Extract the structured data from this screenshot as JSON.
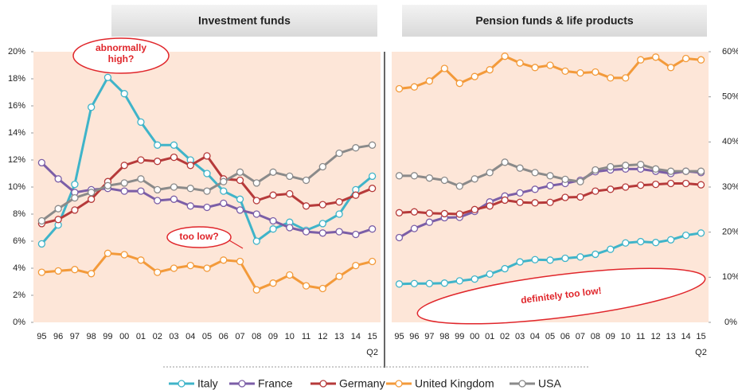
{
  "chart_data": [
    {
      "type": "line",
      "title": "Investment funds",
      "categories": [
        "95",
        "96",
        "97",
        "98",
        "99",
        "00",
        "01",
        "02",
        "03",
        "04",
        "05",
        "06",
        "07",
        "08",
        "09",
        "10",
        "11",
        "12",
        "13",
        "14",
        "15"
      ],
      "category_note": "Q2",
      "ylim": [
        0,
        20
      ],
      "yticks": [
        {
          "value": 0,
          "label": "0%"
        },
        {
          "value": 2,
          "label": "2%"
        },
        {
          "value": 4,
          "label": "4%"
        },
        {
          "value": 6,
          "label": "6%"
        },
        {
          "value": 8,
          "label": "8%"
        },
        {
          "value": 10,
          "label": "10%"
        },
        {
          "value": 12,
          "label": "12%"
        },
        {
          "value": 14,
          "label": "14%"
        },
        {
          "value": 16,
          "label": "16%"
        },
        {
          "value": 18,
          "label": "18%"
        },
        {
          "value": 20,
          "label": "20%"
        }
      ],
      "axis_side": "left",
      "annotations": [
        "abnormally high?",
        "too low?"
      ],
      "series": [
        {
          "name": "Italy",
          "color": "#3fb4c9",
          "values": [
            5.8,
            7.2,
            10.2,
            15.9,
            18.1,
            16.9,
            14.8,
            13.1,
            13.1,
            12.0,
            11.0,
            9.7,
            9.1,
            6.0,
            6.9,
            7.4,
            6.8,
            7.3,
            8.0,
            9.8,
            10.8
          ]
        },
        {
          "name": "France",
          "color": "#7b5ea7",
          "values": [
            11.8,
            10.6,
            9.6,
            9.8,
            9.9,
            9.7,
            9.7,
            9.0,
            9.1,
            8.6,
            8.5,
            8.8,
            8.3,
            8.0,
            7.5,
            7.0,
            6.7,
            6.6,
            6.7,
            6.5,
            6.9
          ]
        },
        {
          "name": "Germany",
          "color": "#b63a3a",
          "values": [
            7.3,
            7.6,
            8.3,
            9.1,
            10.4,
            11.6,
            12.0,
            11.9,
            12.2,
            11.6,
            12.3,
            10.6,
            10.5,
            9.0,
            9.4,
            9.5,
            8.6,
            8.7,
            8.9,
            9.4,
            9.9
          ]
        },
        {
          "name": "United Kingdom",
          "color": "#f39a3a",
          "values": [
            3.7,
            3.8,
            3.9,
            3.6,
            5.1,
            5.0,
            4.6,
            3.7,
            4.0,
            4.2,
            4.0,
            4.6,
            4.5,
            2.4,
            2.9,
            3.5,
            2.7,
            2.5,
            3.4,
            4.2,
            4.5
          ]
        },
        {
          "name": "USA",
          "color": "#8a8a8a",
          "values": [
            7.5,
            8.4,
            9.2,
            9.6,
            10.1,
            10.3,
            10.6,
            9.8,
            10.0,
            9.9,
            9.7,
            10.4,
            11.1,
            10.3,
            11.1,
            10.8,
            10.5,
            11.5,
            12.5,
            12.9,
            13.1
          ]
        }
      ]
    },
    {
      "type": "line",
      "title": "Pension funds & life products",
      "categories": [
        "95",
        "96",
        "97",
        "98",
        "99",
        "00",
        "01",
        "02",
        "03",
        "04",
        "05",
        "06",
        "07",
        "08",
        "09",
        "10",
        "11",
        "12",
        "13",
        "14",
        "15"
      ],
      "category_note": "Q2",
      "ylim": [
        0,
        60
      ],
      "yticks": [
        {
          "value": 0,
          "label": "0%"
        },
        {
          "value": 10,
          "label": "10%"
        },
        {
          "value": 20,
          "label": "20%"
        },
        {
          "value": 30,
          "label": "30%"
        },
        {
          "value": 40,
          "label": "40%"
        },
        {
          "value": 50,
          "label": "50%"
        },
        {
          "value": 60,
          "label": "60%"
        }
      ],
      "axis_side": "right",
      "annotations": [
        "definitely too low!"
      ],
      "series": [
        {
          "name": "Italy",
          "color": "#3fb4c9",
          "values": [
            8.5,
            8.6,
            8.6,
            8.7,
            9.2,
            9.6,
            10.7,
            11.9,
            13.4,
            13.9,
            13.8,
            14.2,
            14.5,
            15.1,
            16.2,
            17.6,
            17.9,
            17.7,
            18.3,
            19.3,
            19.8
          ]
        },
        {
          "name": "France",
          "color": "#7b5ea7",
          "values": [
            18.8,
            20.8,
            22.2,
            23.2,
            23.3,
            24.6,
            26.7,
            28.0,
            28.7,
            29.5,
            30.3,
            30.8,
            31.5,
            33.4,
            33.8,
            34.0,
            34.0,
            33.5,
            33.0,
            33.5,
            33.2
          ]
        },
        {
          "name": "Germany",
          "color": "#b63a3a",
          "values": [
            24.3,
            24.5,
            24.2,
            24.1,
            24.0,
            25.0,
            25.8,
            27.1,
            26.6,
            26.5,
            26.6,
            27.7,
            27.8,
            29.1,
            29.5,
            30.0,
            30.4,
            30.6,
            30.8,
            30.8,
            30.5
          ]
        },
        {
          "name": "United Kingdom",
          "color": "#f39a3a",
          "values": [
            51.8,
            52.2,
            53.5,
            56.3,
            53.0,
            54.5,
            56.0,
            59.0,
            57.5,
            56.5,
            57.0,
            55.7,
            55.3,
            55.5,
            54.2,
            54.2,
            58.2,
            58.8,
            56.5,
            58.5,
            58.2
          ]
        },
        {
          "name": "USA",
          "color": "#8a8a8a",
          "values": [
            32.5,
            32.5,
            32.0,
            31.5,
            30.2,
            31.8,
            33.2,
            35.5,
            34.2,
            33.2,
            32.5,
            31.7,
            31.2,
            33.8,
            34.5,
            34.8,
            35.0,
            34.0,
            33.5,
            33.5,
            33.5
          ]
        }
      ]
    }
  ]
}
